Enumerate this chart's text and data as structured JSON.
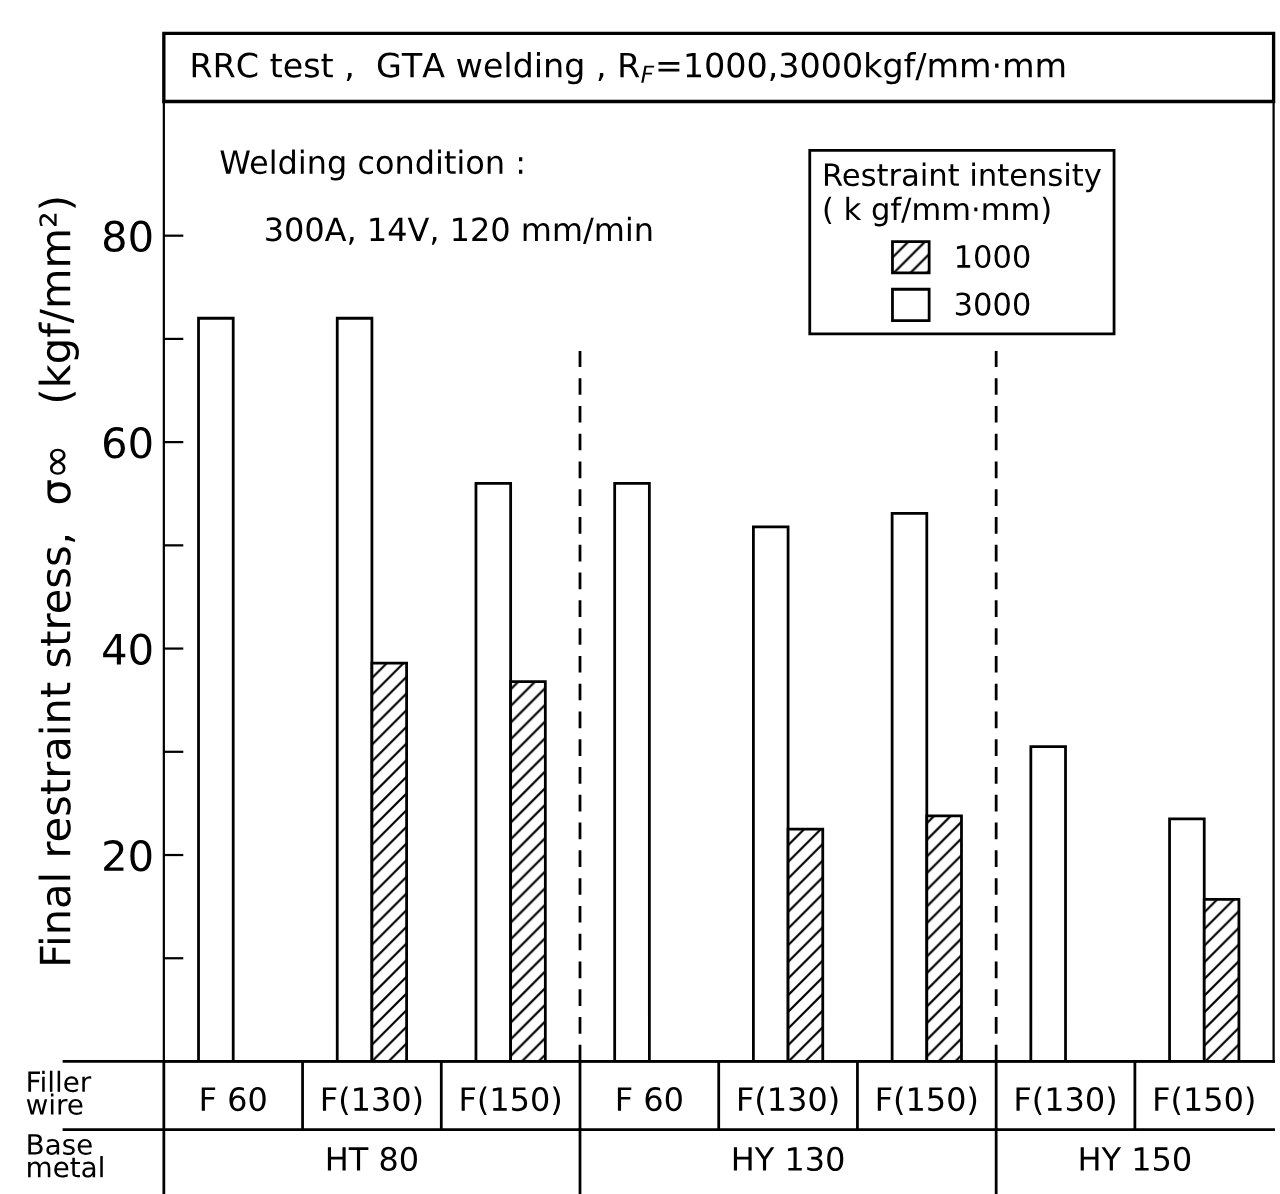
{
  "chart_data": {
    "type": "bar",
    "title": "RRC test ,  GTA welding , R$_{F}$=1000,3000kgf/mm·mm",
    "ylabel": "Final restraint stress,  σ∞   (kgf/mm²)",
    "legend_title": "Restraint intensity\n( k gf/mm·mm)",
    "categories": [
      "F 60",
      "F(130)",
      "F(150)",
      "F 60",
      "F(130)",
      "F(150)",
      "F(130)",
      "F(150)"
    ],
    "series": [
      {
        "name": "3000",
        "color": "#ffffff",
        "values": [
          72,
          72,
          56,
          56,
          51.8,
          53.1,
          30.5,
          23.5
        ]
      },
      {
        "name": "1000",
        "color": "#000000",
        "values": [
          null,
          38.6,
          36.8,
          null,
          22.5,
          23.8,
          null,
          15.7
        ]
      }
    ],
    "ylim": [
      0,
      93
    ],
    "yticks": [
      {
        "value": 10,
        "label": null
      },
      20,
      {
        "value": 30,
        "label": null
      },
      40,
      {
        "value": 50,
        "label": null
      },
      60,
      {
        "value": 70,
        "label": null
      },
      80
    ],
    "annotations": [
      "Welding condition :",
      "300A, 14V, 120 mm/min",
      "Filler\nwire",
      "Base\nmetal",
      "HT 80",
      "HY 130",
      "HY 150"
    ],
    "legend": "top right",
    "grid": false
  }
}
